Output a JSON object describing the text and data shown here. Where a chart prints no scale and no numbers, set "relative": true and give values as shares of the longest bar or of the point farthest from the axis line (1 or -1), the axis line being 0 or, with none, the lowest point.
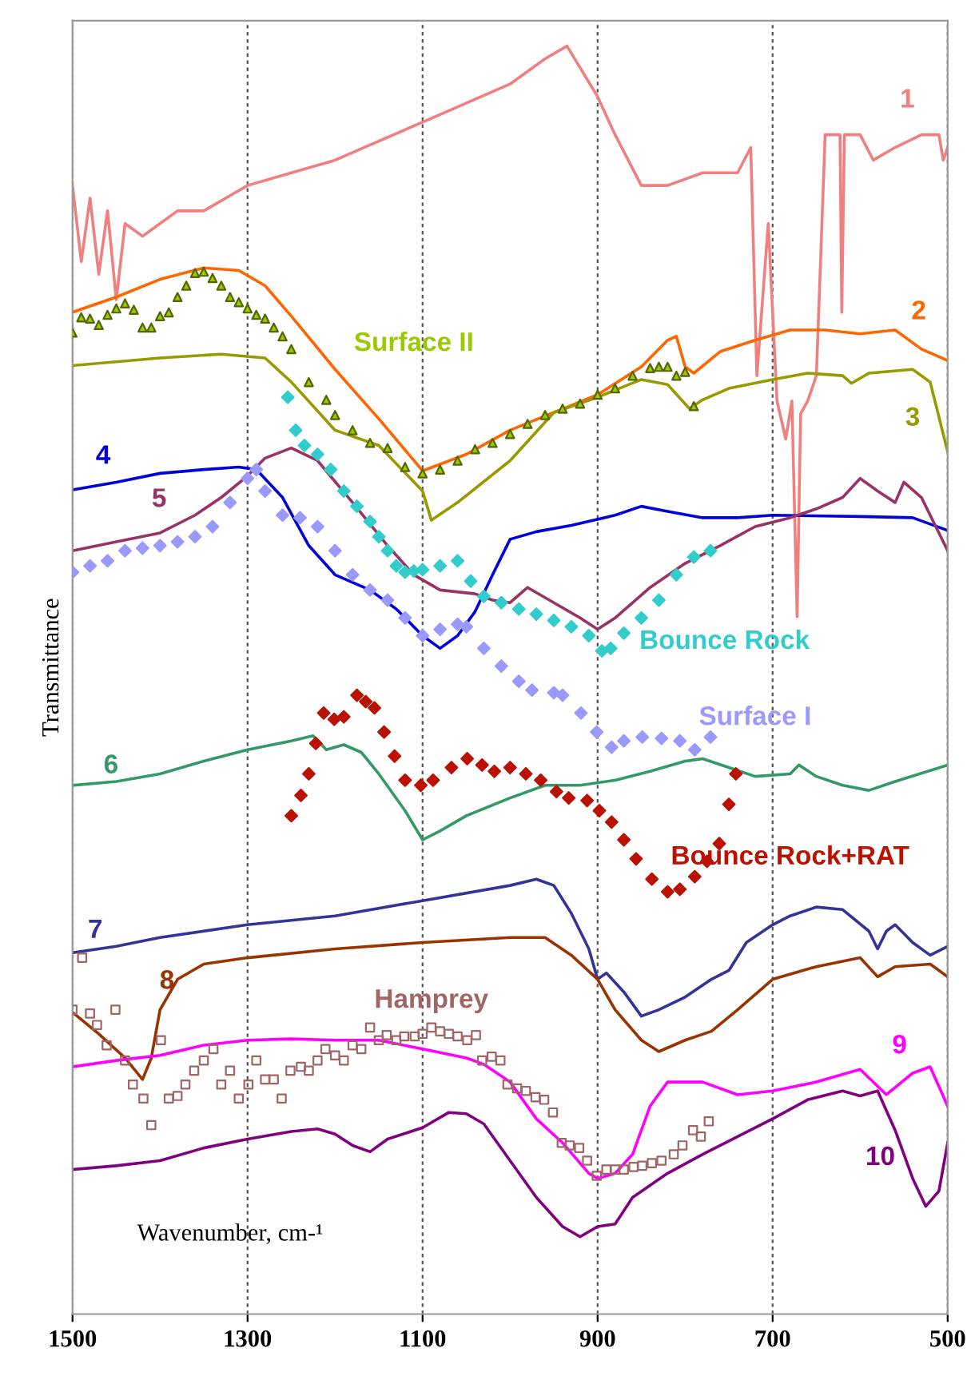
{
  "chart_data": {
    "type": "line",
    "relative": true,
    "xlabel": "Wavenumber, cm-¹",
    "ylabel": "Transmittance",
    "xlim": [
      1500,
      500
    ],
    "xticks": [
      1500,
      1300,
      1100,
      900,
      700,
      500
    ],
    "grid": "x",
    "legend": false,
    "line_style": "solid",
    "series": [
      {
        "name": "1",
        "color": "#f08080",
        "x": [
          1500,
          1490,
          1480,
          1470,
          1460,
          1450,
          1440,
          1420,
          1400,
          1380,
          1350,
          1300,
          1250,
          1200,
          1100,
          1000,
          960,
          935,
          900,
          880,
          850,
          820,
          780,
          740,
          725,
          718,
          705,
          695,
          685,
          678,
          672,
          668,
          660,
          650,
          640,
          630,
          623,
          621,
          618,
          600,
          585,
          560,
          530,
          510,
          505,
          500
        ],
        "values": [
          0.89,
          0.83,
          0.88,
          0.82,
          0.87,
          0.8,
          0.86,
          0.85,
          0.86,
          0.87,
          0.87,
          0.89,
          0.9,
          0.91,
          0.94,
          0.97,
          0.99,
          1.0,
          0.96,
          0.93,
          0.89,
          0.89,
          0.9,
          0.9,
          0.92,
          0.74,
          0.86,
          0.72,
          0.69,
          0.72,
          0.55,
          0.71,
          0.72,
          0.74,
          0.93,
          0.93,
          0.93,
          0.79,
          0.93,
          0.93,
          0.91,
          0.92,
          0.93,
          0.93,
          0.91,
          0.92
        ]
      },
      {
        "name": "2",
        "color": "#ff6600",
        "x": [
          1500,
          1450,
          1400,
          1350,
          1310,
          1280,
          1250,
          1200,
          1150,
          1100,
          1050,
          1000,
          950,
          900,
          850,
          820,
          810,
          800,
          790,
          760,
          720,
          680,
          640,
          600,
          560,
          530,
          500
        ],
        "values": [
          0.79,
          0.802,
          0.816,
          0.825,
          0.823,
          0.811,
          0.787,
          0.745,
          0.706,
          0.665,
          0.678,
          0.697,
          0.711,
          0.725,
          0.747,
          0.768,
          0.771,
          0.747,
          0.742,
          0.759,
          0.768,
          0.776,
          0.776,
          0.773,
          0.776,
          0.761,
          0.752
        ]
      },
      {
        "name": "3",
        "color": "#999900",
        "x": [
          1500,
          1400,
          1330,
          1280,
          1250,
          1200,
          1150,
          1100,
          1090,
          1060,
          1000,
          950,
          900,
          850,
          820,
          795,
          780,
          750,
          700,
          660,
          620,
          610,
          590,
          540,
          520,
          500
        ],
        "values": [
          0.748,
          0.754,
          0.757,
          0.754,
          0.735,
          0.697,
          0.685,
          0.649,
          0.626,
          0.64,
          0.673,
          0.711,
          0.723,
          0.737,
          0.733,
          0.714,
          0.721,
          0.73,
          0.737,
          0.742,
          0.74,
          0.734,
          0.742,
          0.745,
          0.735,
          0.68
        ]
      },
      {
        "name": "4",
        "color": "#0000dd",
        "x": [
          1500,
          1450,
          1400,
          1350,
          1310,
          1290,
          1260,
          1230,
          1200,
          1160,
          1130,
          1100,
          1080,
          1060,
          1040,
          1020,
          1000,
          970,
          930,
          880,
          850,
          820,
          780,
          740,
          700,
          600,
          540,
          500
        ],
        "values": [
          0.65,
          0.656,
          0.663,
          0.666,
          0.668,
          0.666,
          0.644,
          0.606,
          0.583,
          0.571,
          0.556,
          0.535,
          0.525,
          0.535,
          0.554,
          0.583,
          0.611,
          0.617,
          0.622,
          0.63,
          0.637,
          0.633,
          0.628,
          0.628,
          0.63,
          0.629,
          0.628,
          0.618
        ]
      },
      {
        "name": "5",
        "color": "#993366",
        "x": [
          1500,
          1450,
          1400,
          1360,
          1330,
          1300,
          1280,
          1250,
          1220,
          1180,
          1140,
          1110,
          1080,
          1040,
          1020,
          1000,
          980,
          950,
          920,
          900,
          880,
          840,
          800,
          760,
          720,
          680,
          650,
          620,
          600,
          580,
          560,
          550,
          530,
          500
        ],
        "values": [
          0.602,
          0.609,
          0.616,
          0.63,
          0.644,
          0.661,
          0.675,
          0.683,
          0.673,
          0.64,
          0.606,
          0.583,
          0.571,
          0.568,
          0.563,
          0.561,
          0.573,
          0.561,
          0.549,
          0.54,
          0.549,
          0.573,
          0.592,
          0.606,
          0.621,
          0.628,
          0.635,
          0.644,
          0.659,
          0.649,
          0.64,
          0.656,
          0.644,
          0.602
        ]
      },
      {
        "name": "Surface II",
        "type": "scatter",
        "marker": "triangle",
        "color": "#99cc00",
        "x": [
          1500,
          1490,
          1480,
          1470,
          1460,
          1450,
          1440,
          1430,
          1420,
          1410,
          1400,
          1390,
          1380,
          1370,
          1360,
          1350,
          1340,
          1330,
          1320,
          1310,
          1300,
          1290,
          1280,
          1270,
          1260,
          1250,
          1230,
          1210,
          1200,
          1180,
          1160,
          1140,
          1120,
          1100,
          1080,
          1060,
          1040,
          1020,
          1000,
          980,
          960,
          940,
          920,
          900,
          880,
          860,
          840,
          830,
          820,
          810,
          800,
          790
        ],
        "values": [
          0.774,
          0.786,
          0.785,
          0.78,
          0.788,
          0.793,
          0.797,
          0.792,
          0.778,
          0.778,
          0.787,
          0.79,
          0.802,
          0.811,
          0.821,
          0.822,
          0.817,
          0.811,
          0.802,
          0.798,
          0.793,
          0.788,
          0.785,
          0.778,
          0.771,
          0.761,
          0.735,
          0.721,
          0.709,
          0.697,
          0.687,
          0.683,
          0.668,
          0.663,
          0.666,
          0.673,
          0.682,
          0.687,
          0.694,
          0.702,
          0.709,
          0.714,
          0.718,
          0.725,
          0.73,
          0.74,
          0.746,
          0.747,
          0.747,
          0.74,
          0.743,
          0.716
        ]
      },
      {
        "name": "Bounce Rock",
        "type": "scatter",
        "marker": "diamond",
        "color": "#33cccc",
        "x": [
          1254,
          1245,
          1235,
          1220,
          1205,
          1190,
          1175,
          1160,
          1150,
          1140,
          1130,
          1120,
          1110,
          1100,
          1080,
          1060,
          1045,
          1030,
          1010,
          990,
          970,
          950,
          930,
          910,
          895,
          885,
          870,
          850,
          830,
          810,
          790,
          771
        ],
        "values": [
          0.723,
          0.697,
          0.685,
          0.678,
          0.666,
          0.649,
          0.637,
          0.625,
          0.613,
          0.602,
          0.59,
          0.585,
          0.586,
          0.587,
          0.59,
          0.594,
          0.578,
          0.566,
          0.561,
          0.556,
          0.552,
          0.547,
          0.542,
          0.535,
          0.523,
          0.525,
          0.537,
          0.549,
          0.563,
          0.583,
          0.597,
          0.602
        ]
      },
      {
        "name": "Surface I",
        "type": "scatter",
        "marker": "diamond",
        "color": "#9999ff",
        "x": [
          1500,
          1480,
          1460,
          1440,
          1420,
          1400,
          1380,
          1360,
          1340,
          1320,
          1300,
          1290,
          1280,
          1260,
          1240,
          1220,
          1200,
          1180,
          1160,
          1140,
          1120,
          1100,
          1080,
          1060,
          1050,
          1030,
          1010,
          990,
          975,
          950,
          940,
          919,
          901,
          884,
          870,
          849,
          827,
          806,
          789,
          771
        ],
        "values": [
          0.585,
          0.59,
          0.594,
          0.602,
          0.604,
          0.606,
          0.609,
          0.613,
          0.621,
          0.64,
          0.659,
          0.666,
          0.649,
          0.63,
          0.628,
          0.621,
          0.602,
          0.583,
          0.571,
          0.563,
          0.549,
          0.535,
          0.54,
          0.544,
          0.542,
          0.525,
          0.511,
          0.499,
          0.492,
          0.49,
          0.488,
          0.474,
          0.459,
          0.447,
          0.452,
          0.455,
          0.454,
          0.452,
          0.445,
          0.455
        ]
      },
      {
        "name": "6",
        "color": "#339966",
        "x": [
          1500,
          1450,
          1400,
          1350,
          1300,
          1250,
          1225,
          1210,
          1190,
          1170,
          1150,
          1120,
          1100,
          1080,
          1050,
          1000,
          960,
          920,
          880,
          840,
          800,
          780,
          750,
          720,
          680,
          670,
          650,
          620,
          590,
          560,
          500
        ],
        "values": [
          0.417,
          0.42,
          0.426,
          0.436,
          0.445,
          0.452,
          0.456,
          0.445,
          0.449,
          0.443,
          0.426,
          0.397,
          0.374,
          0.381,
          0.393,
          0.407,
          0.417,
          0.417,
          0.421,
          0.428,
          0.436,
          0.438,
          0.431,
          0.424,
          0.426,
          0.433,
          0.424,
          0.417,
          0.413,
          0.42,
          0.433
        ]
      },
      {
        "name": "Bounce Rock+RAT",
        "type": "scatter",
        "marker": "diamond",
        "color": "#bb1100",
        "x": [
          1250,
          1239,
          1230,
          1222,
          1213,
          1201,
          1190,
          1175,
          1165,
          1155,
          1144,
          1132,
          1120,
          1102,
          1088,
          1067,
          1049,
          1032,
          1018,
          1000,
          982,
          965,
          947,
          933,
          912,
          898,
          884,
          870,
          856,
          838,
          820,
          806,
          789,
          775,
          761,
          750,
          742
        ],
        "values": [
          0.393,
          0.409,
          0.426,
          0.45,
          0.474,
          0.469,
          0.471,
          0.488,
          0.483,
          0.478,
          0.459,
          0.44,
          0.421,
          0.417,
          0.421,
          0.431,
          0.438,
          0.433,
          0.428,
          0.431,
          0.426,
          0.421,
          0.412,
          0.407,
          0.405,
          0.397,
          0.388,
          0.374,
          0.359,
          0.343,
          0.333,
          0.335,
          0.345,
          0.357,
          0.371,
          0.402,
          0.426
        ]
      },
      {
        "name": "7",
        "color": "#333399",
        "x": [
          1500,
          1450,
          1400,
          1300,
          1200,
          1100,
          1000,
          970,
          950,
          930,
          910,
          900,
          890,
          870,
          850,
          830,
          800,
          770,
          750,
          730,
          700,
          680,
          650,
          620,
          590,
          580,
          570,
          560,
          540,
          520,
          500
        ],
        "values": [
          0.285,
          0.29,
          0.297,
          0.307,
          0.314,
          0.326,
          0.338,
          0.343,
          0.338,
          0.316,
          0.288,
          0.264,
          0.269,
          0.254,
          0.235,
          0.24,
          0.25,
          0.264,
          0.271,
          0.293,
          0.307,
          0.314,
          0.321,
          0.319,
          0.302,
          0.288,
          0.302,
          0.307,
          0.293,
          0.283,
          0.29
        ]
      },
      {
        "name": "8",
        "color": "#993300",
        "x": [
          1500,
          1470,
          1440,
          1420,
          1410,
          1400,
          1380,
          1350,
          1300,
          1200,
          1100,
          1000,
          960,
          930,
          900,
          880,
          850,
          830,
          800,
          770,
          740,
          700,
          650,
          600,
          580,
          560,
          520,
          500
        ],
        "values": [
          0.238,
          0.221,
          0.202,
          0.185,
          0.202,
          0.24,
          0.264,
          0.276,
          0.281,
          0.288,
          0.293,
          0.297,
          0.297,
          0.283,
          0.264,
          0.24,
          0.216,
          0.207,
          0.216,
          0.223,
          0.24,
          0.264,
          0.274,
          0.281,
          0.266,
          0.274,
          0.276,
          0.266
        ]
      },
      {
        "name": "9",
        "color": "#ff00ff",
        "x": [
          1500,
          1450,
          1400,
          1350,
          1300,
          1250,
          1200,
          1150,
          1100,
          1050,
          1030,
          1000,
          970,
          940,
          910,
          900,
          880,
          860,
          840,
          820,
          780,
          740,
          700,
          650,
          600,
          570,
          540,
          520,
          500
        ],
        "values": [
          0.195,
          0.2,
          0.204,
          0.212,
          0.216,
          0.217,
          0.216,
          0.216,
          0.209,
          0.202,
          0.197,
          0.183,
          0.154,
          0.135,
          0.111,
          0.107,
          0.111,
          0.126,
          0.164,
          0.183,
          0.183,
          0.173,
          0.176,
          0.183,
          0.193,
          0.173,
          0.19,
          0.195,
          0.164
        ]
      },
      {
        "name": "Hamprey",
        "type": "scatter",
        "marker": "square",
        "color": "#a06666",
        "x": [
          1500,
          1489,
          1480,
          1472,
          1461,
          1451,
          1440,
          1431,
          1419,
          1410,
          1399,
          1390,
          1380,
          1371,
          1361,
          1350,
          1339,
          1330,
          1320,
          1310,
          1299,
          1290,
          1280,
          1270,
          1261,
          1251,
          1239,
          1230,
          1220,
          1211,
          1200,
          1190,
          1180,
          1170,
          1160,
          1150,
          1141,
          1130,
          1121,
          1109,
          1100,
          1090,
          1080,
          1070,
          1060,
          1049,
          1039,
          1032,
          1021,
          1011,
          1003,
          992,
          982,
          971,
          961,
          951,
          941,
          932,
          921,
          912,
          901,
          890,
          880,
          870,
          859,
          849,
          838,
          827,
          813,
          803,
          791,
          782,
          773
        ],
        "values": [
          0.24,
          0.281,
          0.237,
          0.228,
          0.212,
          0.24,
          0.2,
          0.181,
          0.17,
          0.149,
          0.216,
          0.17,
          0.172,
          0.181,
          0.192,
          0.2,
          0.209,
          0.181,
          0.192,
          0.17,
          0.181,
          0.2,
          0.185,
          0.185,
          0.17,
          0.192,
          0.195,
          0.192,
          0.2,
          0.209,
          0.204,
          0.2,
          0.212,
          0.209,
          0.226,
          0.216,
          0.22,
          0.216,
          0.219,
          0.219,
          0.221,
          0.226,
          0.223,
          0.221,
          0.219,
          0.216,
          0.22,
          0.2,
          0.203,
          0.2,
          0.181,
          0.178,
          0.176,
          0.171,
          0.169,
          0.159,
          0.135,
          0.133,
          0.131,
          0.121,
          0.109,
          0.114,
          0.114,
          0.114,
          0.116,
          0.117,
          0.119,
          0.121,
          0.126,
          0.133,
          0.145,
          0.14,
          0.152
        ]
      },
      {
        "name": "10",
        "color": "#800080",
        "x": [
          1500,
          1450,
          1400,
          1350,
          1300,
          1250,
          1220,
          1200,
          1180,
          1160,
          1140,
          1100,
          1070,
          1050,
          1030,
          1000,
          970,
          940,
          920,
          900,
          880,
          860,
          820,
          780,
          740,
          700,
          660,
          620,
          600,
          580,
          560,
          540,
          525,
          510,
          500
        ],
        "values": [
          0.114,
          0.117,
          0.121,
          0.131,
          0.138,
          0.144,
          0.146,
          0.142,
          0.133,
          0.128,
          0.138,
          0.147,
          0.159,
          0.158,
          0.15,
          0.121,
          0.092,
          0.069,
          0.061,
          0.069,
          0.071,
          0.092,
          0.111,
          0.126,
          0.14,
          0.154,
          0.169,
          0.176,
          0.172,
          0.176,
          0.145,
          0.107,
          0.085,
          0.097,
          0.135
        ]
      }
    ]
  }
}
